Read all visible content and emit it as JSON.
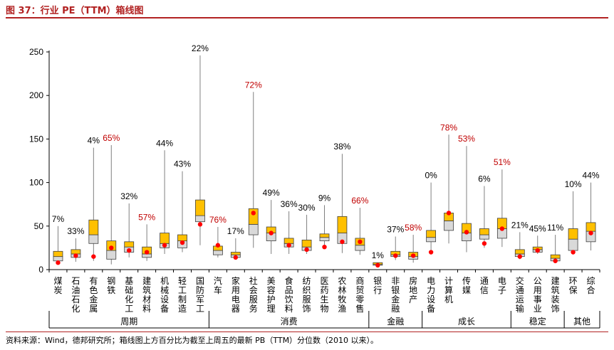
{
  "figure": {
    "title": "图 37：行业 PE（TTM）箱线图",
    "source": "资料来源：Wind，德邦研究所；箱线图上方百分比为截至上周五的最新 PB（TTM）分位数（2010 以来）。"
  },
  "chart_data": {
    "type": "box",
    "title": "",
    "xlabel": "",
    "ylabel": "",
    "ylim": [
      0,
      250
    ],
    "yticks": [
      0,
      50,
      100,
      150,
      200,
      250
    ],
    "grid": false,
    "legend": "none",
    "colors": {
      "upper_box": "#ffc000",
      "lower_box": "#d9d9d9",
      "current_marker": "#ff0000",
      "highlight_label": "#c00000",
      "normal_label": "#000000",
      "axis": "#000000"
    },
    "groups": [
      {
        "name": "周期",
        "start": 0,
        "end": 8
      },
      {
        "name": "消费",
        "start": 9,
        "end": 17
      },
      {
        "name": "金融",
        "start": 18,
        "end": 20
      },
      {
        "name": "成长",
        "start": 21,
        "end": 25
      },
      {
        "name": "稳定",
        "start": 26,
        "end": 28
      },
      {
        "name": "其他",
        "start": 29,
        "end": 30
      }
    ],
    "industries": [
      {
        "name": "煤炭",
        "min": 6,
        "q1": 10,
        "median": 15,
        "q3": 21,
        "max": 50,
        "current": 8,
        "pct": "7%",
        "highlight": false
      },
      {
        "name": "石油石化",
        "min": 9,
        "q1": 14,
        "median": 18,
        "q3": 23,
        "max": 36,
        "current": 16,
        "pct": "33%",
        "highlight": false
      },
      {
        "name": "有色金属",
        "min": 10,
        "q1": 30,
        "median": 40,
        "q3": 57,
        "max": 140,
        "current": 15,
        "pct": "4%",
        "highlight": false
      },
      {
        "name": "钢铁",
        "min": 6,
        "q1": 12,
        "median": 22,
        "q3": 33,
        "max": 143,
        "current": 25,
        "pct": "65%",
        "highlight": true
      },
      {
        "name": "基础化工",
        "min": 14,
        "q1": 20,
        "median": 26,
        "q3": 32,
        "max": 76,
        "current": 22,
        "pct": "32%",
        "highlight": false
      },
      {
        "name": "建筑材料",
        "min": 10,
        "q1": 14,
        "median": 18,
        "q3": 26,
        "max": 52,
        "current": 20,
        "pct": "57%",
        "highlight": true
      },
      {
        "name": "机械设备",
        "min": 18,
        "q1": 25,
        "median": 30,
        "q3": 42,
        "max": 137,
        "current": 28,
        "pct": "44%",
        "highlight": false
      },
      {
        "name": "轻工制造",
        "min": 20,
        "q1": 25,
        "median": 33,
        "q3": 40,
        "max": 113,
        "current": 31,
        "pct": "43%",
        "highlight": false
      },
      {
        "name": "国防军工",
        "min": 28,
        "q1": 55,
        "median": 62,
        "q3": 80,
        "max": 246,
        "current": 52,
        "pct": "22%",
        "highlight": false
      },
      {
        "name": "汽车",
        "min": 14,
        "q1": 17,
        "median": 22,
        "q3": 27,
        "max": 49,
        "current": 28,
        "pct": "76%",
        "highlight": true
      },
      {
        "name": "家用电器",
        "min": 12,
        "q1": 14,
        "median": 17,
        "q3": 20,
        "max": 36,
        "current": 14,
        "pct": "17%",
        "highlight": false
      },
      {
        "name": "社会服务",
        "min": 25,
        "q1": 40,
        "median": 52,
        "q3": 70,
        "max": 204,
        "current": 65,
        "pct": "72%",
        "highlight": true
      },
      {
        "name": "美容护理",
        "min": 18,
        "q1": 33,
        "median": 42,
        "q3": 49,
        "max": 80,
        "current": 42,
        "pct": "49%",
        "highlight": false
      },
      {
        "name": "食品饮料",
        "min": 18,
        "q1": 26,
        "median": 30,
        "q3": 36,
        "max": 67,
        "current": 28,
        "pct": "36%",
        "highlight": false
      },
      {
        "name": "纺织服饰",
        "min": 18,
        "q1": 22,
        "median": 26,
        "q3": 34,
        "max": 63,
        "current": 23,
        "pct": "30%",
        "highlight": false
      },
      {
        "name": "医药生物",
        "min": 24,
        "q1": 33,
        "median": 37,
        "q3": 41,
        "max": 74,
        "current": 26,
        "pct": "9%",
        "highlight": false
      },
      {
        "name": "农林牧渔",
        "min": 19,
        "q1": 30,
        "median": 42,
        "q3": 61,
        "max": 133,
        "current": 32,
        "pct": "38%",
        "highlight": false
      },
      {
        "name": "商贸零售",
        "min": 17,
        "q1": 22,
        "median": 28,
        "q3": 36,
        "max": 71,
        "current": 32,
        "pct": "66%",
        "highlight": true
      },
      {
        "name": "银行",
        "min": 4,
        "q1": 5,
        "median": 6,
        "q3": 8,
        "max": 8,
        "current": 5,
        "pct": "1%",
        "highlight": false
      },
      {
        "name": "非银金融",
        "min": 11,
        "q1": 15,
        "median": 17,
        "q3": 21,
        "max": 38,
        "current": 16,
        "pct": "37%",
        "highlight": false
      },
      {
        "name": "房地产",
        "min": 8,
        "q1": 12,
        "median": 15,
        "q3": 20,
        "max": 40,
        "current": 16,
        "pct": "58%",
        "highlight": true
      },
      {
        "name": "电力设备",
        "min": 18,
        "q1": 32,
        "median": 37,
        "q3": 45,
        "max": 100,
        "current": 20,
        "pct": "0%",
        "highlight": false
      },
      {
        "name": "计算机",
        "min": 30,
        "q1": 45,
        "median": 56,
        "q3": 65,
        "max": 155,
        "current": 65,
        "pct": "78%",
        "highlight": true
      },
      {
        "name": "传媒",
        "min": 20,
        "q1": 33,
        "median": 42,
        "q3": 53,
        "max": 142,
        "current": 43,
        "pct": "53%",
        "highlight": true
      },
      {
        "name": "通信",
        "min": 25,
        "q1": 35,
        "median": 40,
        "q3": 47,
        "max": 96,
        "current": 30,
        "pct": "6%",
        "highlight": false
      },
      {
        "name": "电子",
        "min": 26,
        "q1": 36,
        "median": 47,
        "q3": 59,
        "max": 115,
        "current": 47,
        "pct": "51%",
        "highlight": true
      },
      {
        "name": "交通运输",
        "min": 12,
        "q1": 15,
        "median": 18,
        "q3": 23,
        "max": 43,
        "current": 15,
        "pct": "21%",
        "highlight": false
      },
      {
        "name": "公用事业",
        "min": 18,
        "q1": 20,
        "median": 23,
        "q3": 26,
        "max": 39,
        "current": 22,
        "pct": "45%",
        "highlight": false
      },
      {
        "name": "建筑装饰",
        "min": 8,
        "q1": 10,
        "median": 13,
        "q3": 17,
        "max": 40,
        "current": 10,
        "pct": "11%",
        "highlight": false
      },
      {
        "name": "环保",
        "min": 18,
        "q1": 22,
        "median": 35,
        "q3": 47,
        "max": 90,
        "current": 20,
        "pct": "10%",
        "highlight": false
      },
      {
        "name": "综合",
        "min": 22,
        "q1": 32,
        "median": 44,
        "q3": 54,
        "max": 100,
        "current": 42,
        "pct": "44%",
        "highlight": false
      }
    ]
  }
}
